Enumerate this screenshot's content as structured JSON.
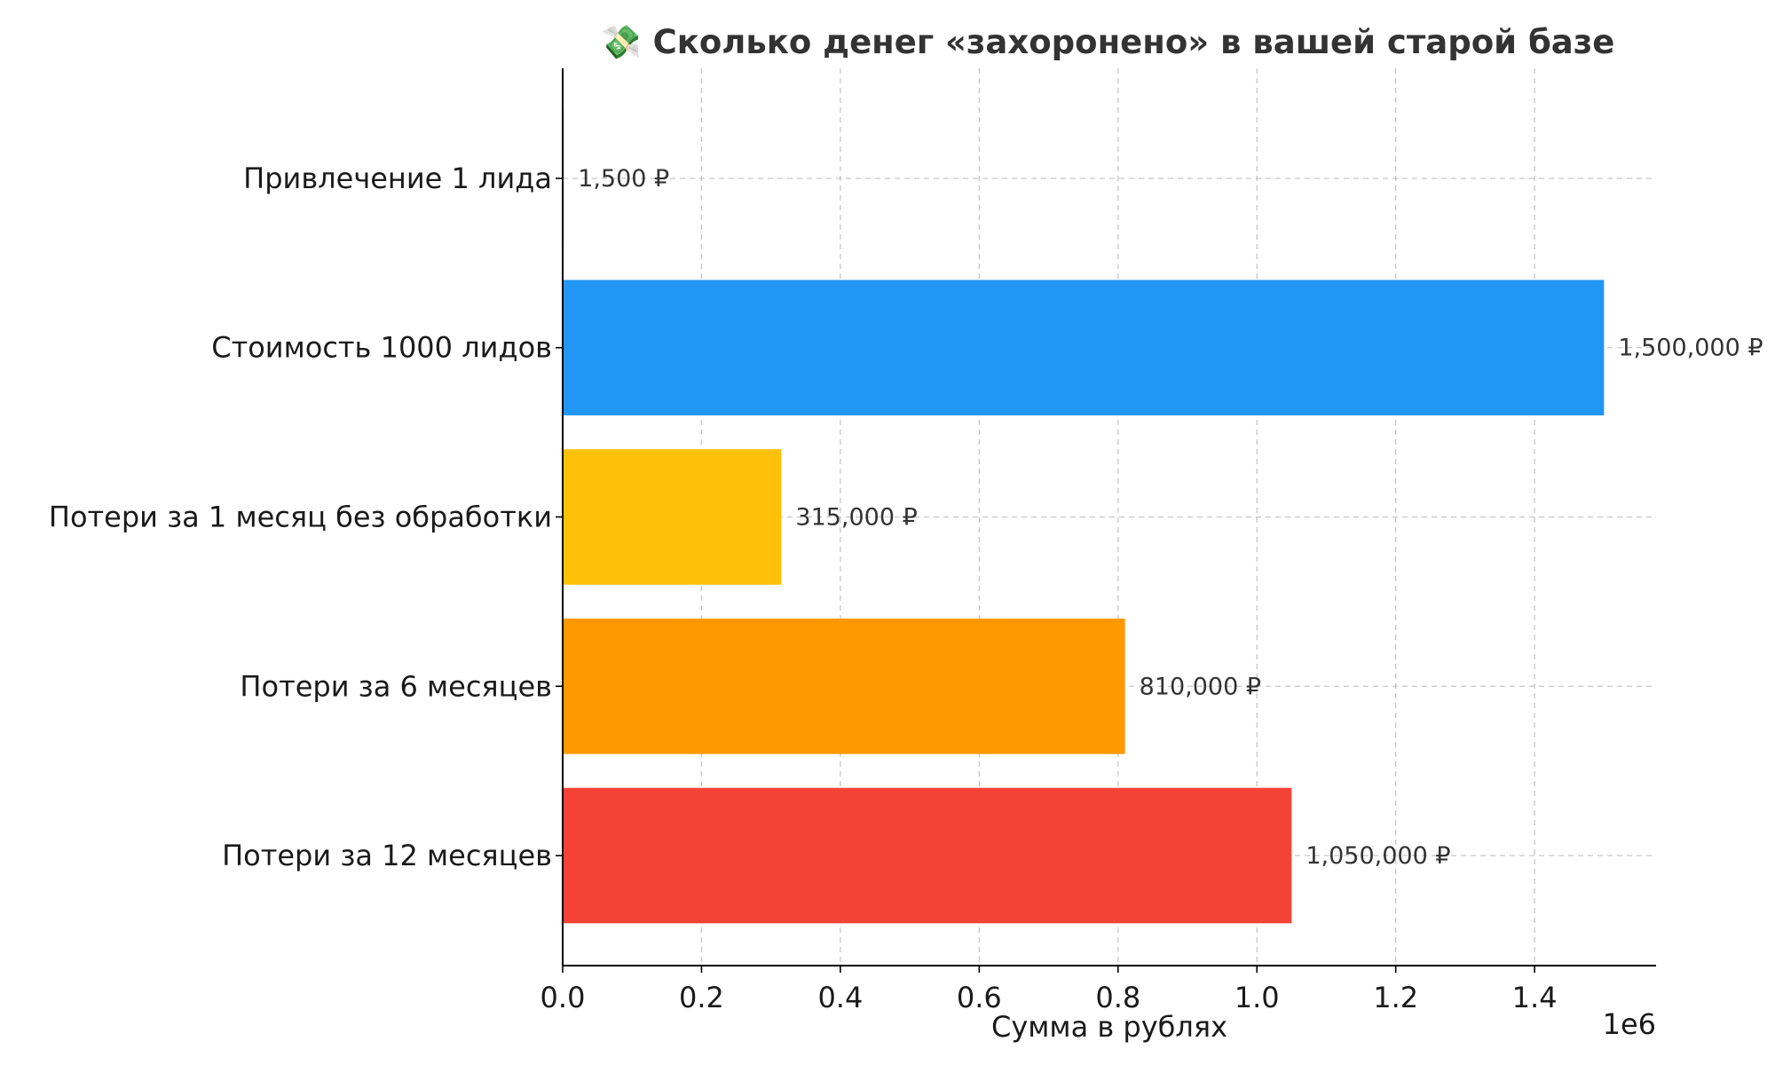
{
  "chart_data": {
    "type": "bar",
    "orientation": "horizontal",
    "title": "💸 Сколько денег «захоронено» в вашей старой базе",
    "xlabel": "Сумма в рублях",
    "ylabel": "",
    "x_offset_label": "1e6",
    "xlim": [
      0,
      1575000
    ],
    "xticks": [
      0,
      200000,
      400000,
      600000,
      800000,
      1000000,
      1200000,
      1400000
    ],
    "xtick_labels": [
      "0.0",
      "0.2",
      "0.4",
      "0.6",
      "0.8",
      "1.0",
      "1.2",
      "1.4"
    ],
    "grid": true,
    "categories": [
      "Привлечение 1 лида",
      "Стоимость 1000 лидов",
      "Потери за 1 месяц без обработки",
      "Потери за 6 месяцев",
      "Потери за 12 месяцев"
    ],
    "values": [
      1500,
      1500000,
      315000,
      810000,
      1050000
    ],
    "data_labels": [
      "1,500 ₽",
      "1,500,000 ₽",
      "315,000 ₽",
      "810,000 ₽",
      "1,050,000 ₽"
    ],
    "colors": [
      "#9e9e9e",
      "#2196F3",
      "#FFC107",
      "#FF9800",
      "#F44336"
    ]
  }
}
